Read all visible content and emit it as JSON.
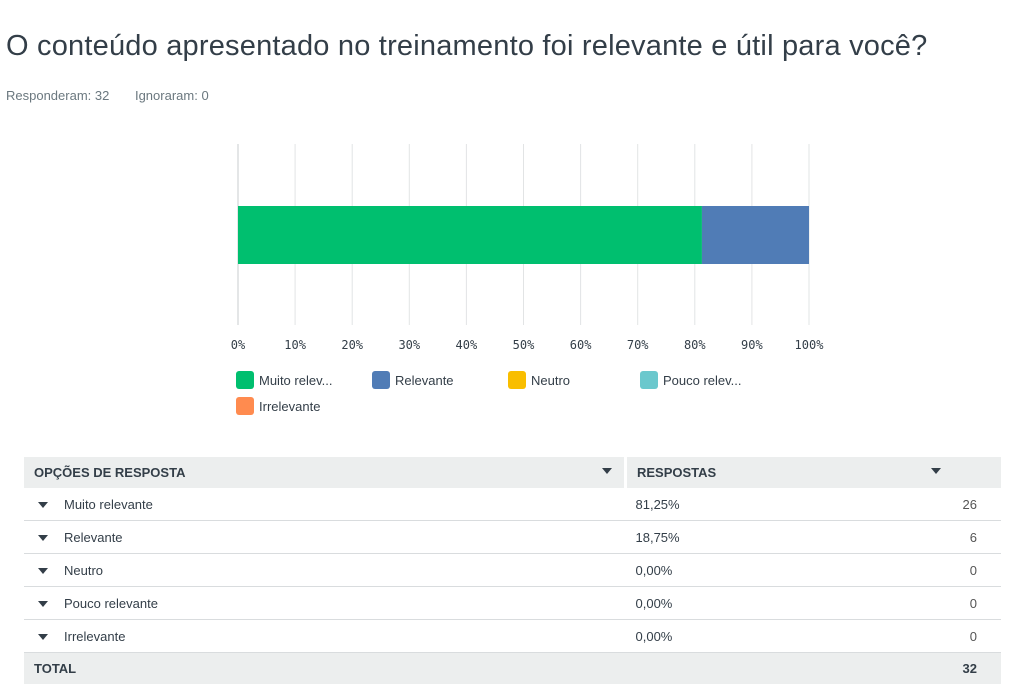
{
  "question": {
    "title": "O conteúdo apresentado no treinamento foi relevante e útil para você?",
    "answered": "Responderam: 32",
    "skipped": "Ignoraram: 0"
  },
  "chart_data": {
    "type": "bar",
    "orientation": "horizontal",
    "stacked": true,
    "categories": [
      ""
    ],
    "series": [
      {
        "name": "Muito relev...",
        "values": [
          81.25
        ],
        "color": "#00bf6f"
      },
      {
        "name": "Relevante",
        "values": [
          18.75
        ],
        "color": "#507cb6"
      },
      {
        "name": "Neutro",
        "values": [
          0
        ],
        "color": "#f9be00"
      },
      {
        "name": "Pouco relev...",
        "values": [
          0
        ],
        "color": "#6bc8cd"
      },
      {
        "name": "Irrelevante",
        "values": [
          0
        ],
        "color": "#ff8b4f"
      }
    ],
    "xlim": [
      0,
      100
    ],
    "xticks": [
      "0%",
      "10%",
      "20%",
      "30%",
      "40%",
      "50%",
      "60%",
      "70%",
      "80%",
      "90%",
      "100%"
    ],
    "grid": true,
    "legend": "bottom"
  },
  "table": {
    "headers": {
      "options": "OPÇÕES DE RESPOSTA",
      "responses": "RESPOSTAS"
    },
    "rows": [
      {
        "option": "Muito relevante",
        "percent": "81,25%",
        "count": "26"
      },
      {
        "option": "Relevante",
        "percent": "18,75%",
        "count": "6"
      },
      {
        "option": "Neutro",
        "percent": "0,00%",
        "count": "0"
      },
      {
        "option": "Pouco relevante",
        "percent": "0,00%",
        "count": "0"
      },
      {
        "option": "Irrelevante",
        "percent": "0,00%",
        "count": "0"
      }
    ],
    "total": {
      "label": "TOTAL",
      "count": "32"
    }
  }
}
